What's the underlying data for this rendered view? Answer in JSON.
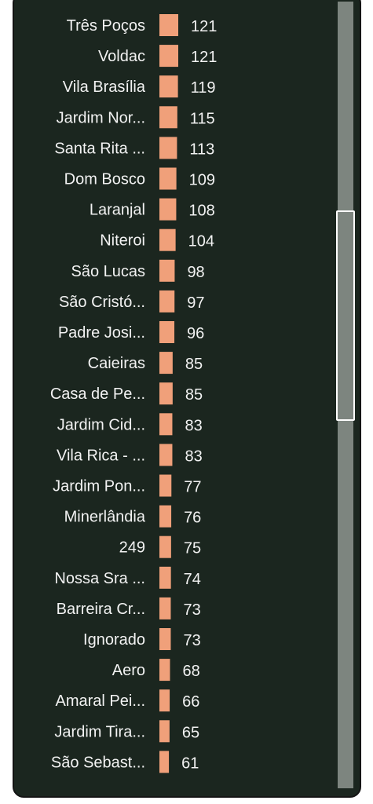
{
  "chart_data": {
    "type": "bar",
    "orientation": "horizontal",
    "categories": [
      "Três Poços",
      "Voldac",
      "Vila Brasília",
      "Jardim Nor...",
      "Santa Rita ...",
      "Dom Bosco",
      "Laranjal",
      "Niteroi",
      "São Lucas",
      "São Cristó...",
      "Padre Josi...",
      "Caieiras",
      "Casa de Pe...",
      "Jardim Cid...",
      "Vila Rica - ...",
      "Jardim Pon...",
      "Minerlândia",
      "249",
      "Nossa Sra ...",
      "Barreira Cr...",
      "Ignorado",
      "Aero",
      "Amaral Pei...",
      "Jardim Tira...",
      "São Sebast..."
    ],
    "values": [
      121,
      121,
      119,
      115,
      113,
      109,
      108,
      104,
      98,
      97,
      96,
      85,
      85,
      83,
      83,
      77,
      76,
      75,
      74,
      73,
      73,
      68,
      66,
      65,
      61
    ],
    "data_labels": true,
    "bar_color": "#f0a07a",
    "background_color": "#1b261f",
    "text_color": "#f2f2f2",
    "scrollbar": {
      "visible": true,
      "track_color": "#7d857f",
      "thumb_border_color": "#ffffff"
    }
  }
}
